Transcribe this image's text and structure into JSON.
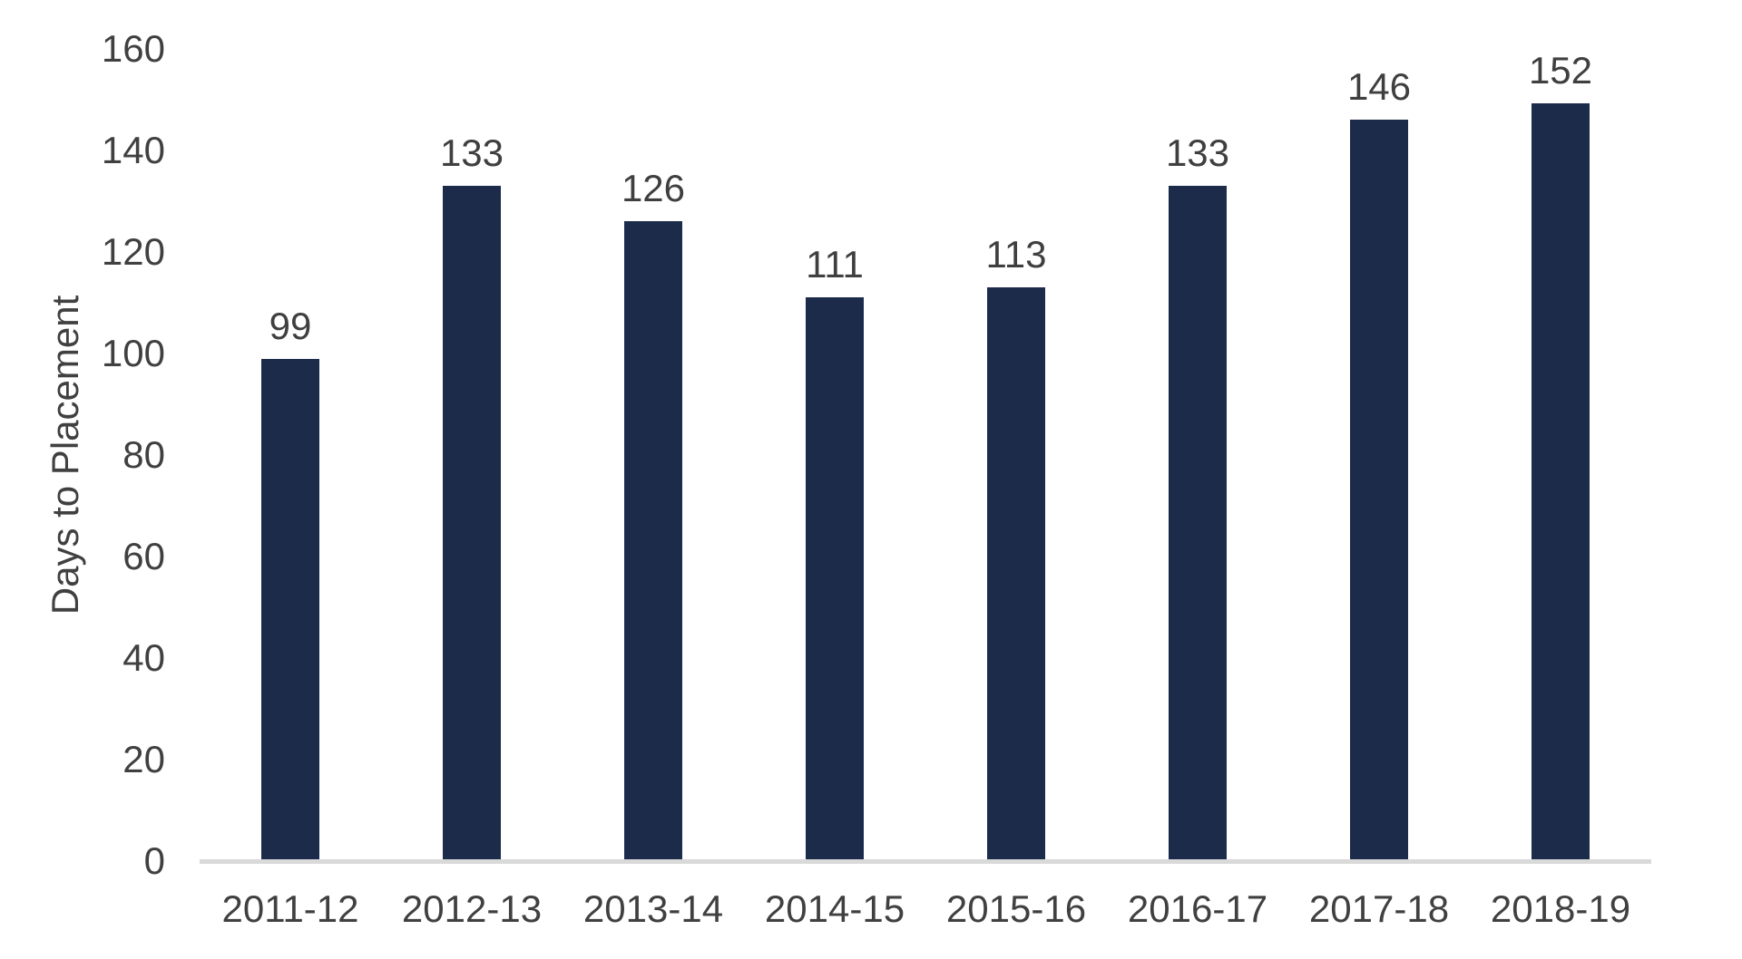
{
  "chart_data": {
    "type": "bar",
    "categories": [
      "2011-12",
      "2012-13",
      "2013-14",
      "2014-15",
      "2015-16",
      "2016-17",
      "2017-18",
      "2018-19"
    ],
    "values": [
      99,
      133,
      126,
      111,
      113,
      133,
      146,
      152
    ],
    "data_labels": [
      "99",
      "133",
      "126",
      "111",
      "113",
      "133",
      "146",
      "152"
    ],
    "title": "",
    "xlabel": "",
    "ylabel": "Days to Placement",
    "ylim": [
      0,
      160
    ],
    "ytick_step": 20,
    "ytick_labels": [
      "0",
      "20",
      "40",
      "60",
      "80",
      "100",
      "120",
      "140",
      "160"
    ],
    "grid": false,
    "legend": "none",
    "colors": {
      "bar": "#1C2B4A",
      "text": "#404040",
      "data_label": "#3F3F3F",
      "axis_line": "#D9D9D9",
      "background": "#FFFFFF"
    }
  }
}
